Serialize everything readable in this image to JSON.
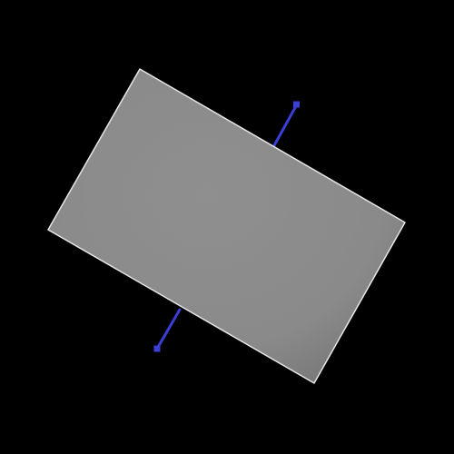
{
  "scene": {
    "background_color": "#000000",
    "axis_color": "#3a3fd6",
    "panel_fill_light": "#8f8f8f",
    "panel_fill_dark": "#727272",
    "panel_edge_color": "#e6e6e6"
  }
}
